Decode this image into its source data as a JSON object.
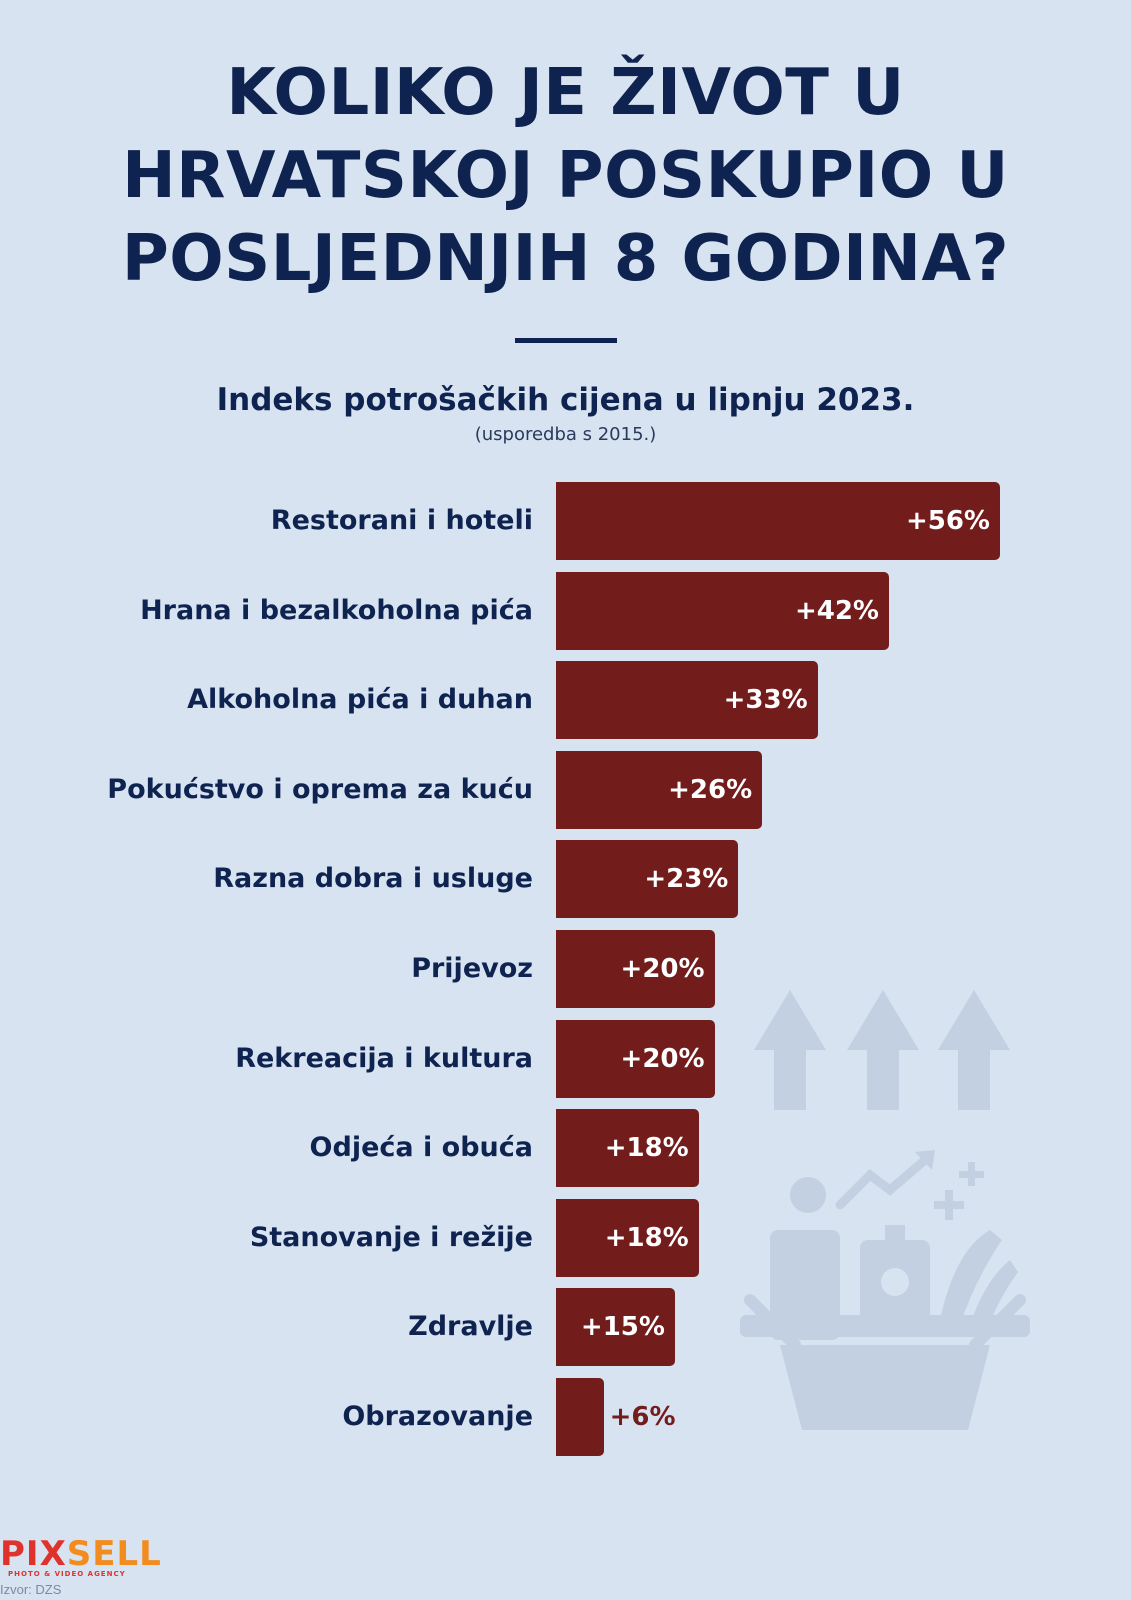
{
  "header": {
    "title_lines": [
      "KOLIKO JE ŽIVOT U",
      "HRVATSKOJ POSKUPIO U",
      "POSLJEDNJIH 8 GODINA?"
    ],
    "subtitle": "Indeks potrošačkih cijena u lipnju 2023.",
    "note": "(usporedba s 2015.)"
  },
  "chart_data": {
    "type": "bar",
    "orientation": "horizontal",
    "categories": [
      "Restorani i hoteli",
      "Hrana i bezalkoholna pića",
      "Alkoholna pića i duhan",
      "Pokućstvo i oprema za kuću",
      "Razna dobra i usluge",
      "Prijevoz",
      "Rekreacija i kultura",
      "Odjeća i obuća",
      "Stanovanje i režije",
      "Zdravlje",
      "Obrazovanje"
    ],
    "values": [
      56,
      42,
      33,
      26,
      23,
      20,
      20,
      18,
      18,
      15,
      6
    ],
    "value_labels": [
      "+56%",
      "+42%",
      "+33%",
      "+26%",
      "+23%",
      "+20%",
      "+20%",
      "+18%",
      "+18%",
      "+15%",
      "+6%"
    ],
    "title": "Indeks potrošačkih cijena u lipnju 2023.",
    "bar_color": "#731c1c",
    "grid": false,
    "legend": "none"
  },
  "footer": {
    "logo_part1": "PIX",
    "logo_part2": "SELL",
    "logo_tagline": "PHOTO & VIDEO AGENCY",
    "source": "Izvor: DZS"
  },
  "colors": {
    "background": "#d8e3f1",
    "text_primary": "#0f2350",
    "bar": "#731c1c",
    "decoration": "#c3d0e2"
  },
  "decoration_icons": [
    "arrow-up-icon",
    "shopping-basket-icon"
  ]
}
